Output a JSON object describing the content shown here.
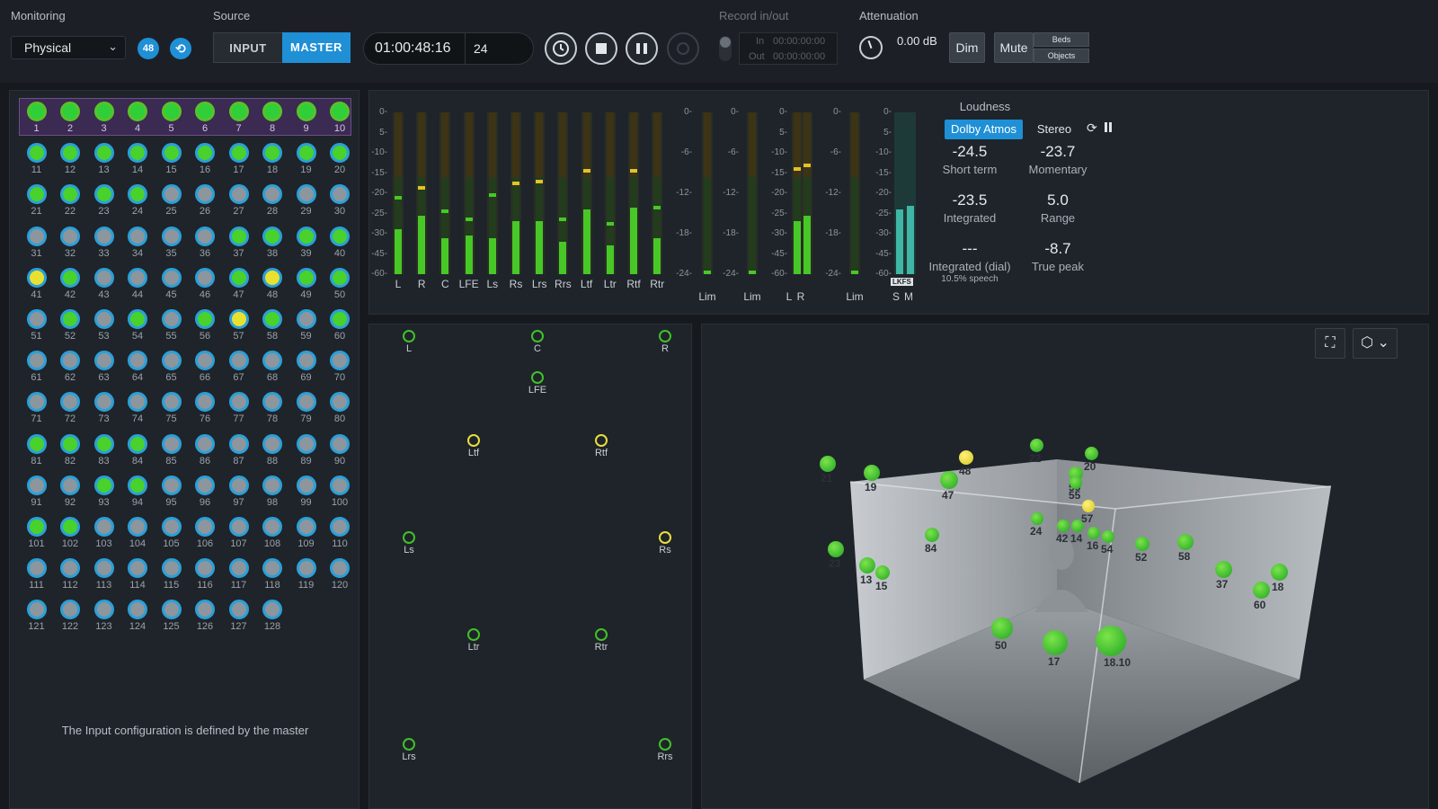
{
  "header": {
    "monitoring_label": "Monitoring",
    "monitoring_value": "Physical",
    "monitoring_badge": "48",
    "source_label": "Source",
    "input_label": "INPUT",
    "master_label": "MASTER",
    "timecode": "01:00:48:16",
    "frame_rate": "24",
    "record_label": "Record in/out",
    "record_in_label": "In",
    "record_in_value": "00:00:00:00",
    "record_out_label": "Out",
    "record_out_value": "00:00:00:00",
    "attenuation_label": "Attenuation",
    "attenuation_value": "0.00 dB",
    "dim_label": "Dim",
    "mute_label": "Mute",
    "beds_label": "Beds",
    "objects_label": "Objects"
  },
  "channels": {
    "top_row": [
      "1",
      "2",
      "3",
      "4",
      "5",
      "6",
      "7",
      "8",
      "9",
      "10"
    ],
    "numbers_start": 11,
    "numbers_end": 128,
    "active_green": [
      11,
      12,
      13,
      14,
      15,
      16,
      17,
      18,
      19,
      20,
      21,
      22,
      23,
      24,
      37,
      38,
      39,
      40,
      42,
      47,
      49,
      50,
      52,
      54,
      56,
      58,
      60,
      81,
      82,
      83,
      84,
      93,
      94,
      101,
      102
    ],
    "active_yellow": [
      41,
      48,
      57
    ],
    "footer_note": "The Input configuration is defined by the master",
    "colors": {
      "ring": "#2ba0d8",
      "active": "#49d12c",
      "inactive": "#8d959d",
      "selected": "#e9e12f",
      "top_bg": "#3b2a52"
    }
  },
  "meters": {
    "scale_main": [
      "0-",
      "5-",
      "-10-",
      "-15-",
      "-20-",
      "-25-",
      "-30-",
      "-45-",
      "-60-"
    ],
    "scale_lim": [
      "0-",
      "-6-",
      "-12-",
      "-18-",
      "-24-"
    ],
    "bed_channels": [
      {
        "label": "L",
        "level": 0.28,
        "peak": 0.46,
        "peak_color": "green"
      },
      {
        "label": "R",
        "level": 0.36,
        "peak": 0.52,
        "peak_color": "yellow"
      },
      {
        "label": "C",
        "level": 0.22,
        "peak": 0.38,
        "peak_color": "green"
      },
      {
        "label": "LFE",
        "level": 0.24,
        "peak": 0.33,
        "peak_color": "green"
      },
      {
        "label": "Ls",
        "level": 0.22,
        "peak": 0.48,
        "peak_color": "green"
      },
      {
        "label": "Rs",
        "level": 0.33,
        "peak": 0.55,
        "peak_color": "yellow"
      },
      {
        "label": "Lrs",
        "level": 0.33,
        "peak": 0.56,
        "peak_color": "yellow"
      },
      {
        "label": "Rrs",
        "level": 0.2,
        "peak": 0.33,
        "peak_color": "green"
      },
      {
        "label": "Ltf",
        "level": 0.4,
        "peak": 0.63,
        "peak_color": "yellow"
      },
      {
        "label": "Ltr",
        "level": 0.18,
        "peak": 0.3,
        "peak_color": "green"
      },
      {
        "label": "Rtf",
        "level": 0.41,
        "peak": 0.63,
        "peak_color": "yellow"
      },
      {
        "label": "Rtr",
        "level": 0.22,
        "peak": 0.4,
        "peak_color": "green"
      }
    ],
    "lim_label": "Lim",
    "headphone_lr": [
      "L",
      "R"
    ],
    "lkfs_label": "LKFS",
    "sm_labels": [
      "S",
      "M"
    ]
  },
  "loudness": {
    "title": "Loudness",
    "tab_active": "Dolby Atmos",
    "tab_other": "Stereo",
    "values": [
      {
        "value": "-24.5",
        "label": "Short term"
      },
      {
        "value": "-23.7",
        "label": "Momentary"
      },
      {
        "value": "-23.5",
        "label": "Integrated"
      },
      {
        "value": "5.0",
        "label": "Range"
      },
      {
        "value": "---",
        "label": "Integrated (dial)"
      },
      {
        "value": "-8.7",
        "label": "True peak"
      }
    ],
    "speech_note": "10.5% speech"
  },
  "speakers": [
    {
      "label": "L",
      "color": "green"
    },
    {
      "label": "C",
      "color": "green"
    },
    {
      "label": "R",
      "color": "green"
    },
    {
      "label": "LFE",
      "color": "green"
    },
    {
      "label": "Ltf",
      "color": "yellow"
    },
    {
      "label": "Rtf",
      "color": "yellow"
    },
    {
      "label": "Ls",
      "color": "green"
    },
    {
      "label": "Rs",
      "color": "yellow"
    },
    {
      "label": "Ltr",
      "color": "green"
    },
    {
      "label": "Rtr",
      "color": "green"
    },
    {
      "label": "Lrs",
      "color": "green"
    },
    {
      "label": "Rrs",
      "color": "green"
    }
  ],
  "objects": [
    {
      "label": "21",
      "color": "green"
    },
    {
      "label": "19",
      "color": "green"
    },
    {
      "label": "47",
      "color": "green"
    },
    {
      "label": "48",
      "color": "yellow"
    },
    {
      "label": "22",
      "color": "green"
    },
    {
      "label": "20",
      "color": "green"
    },
    {
      "label": "56",
      "color": "green"
    },
    {
      "label": "55",
      "color": "green"
    },
    {
      "label": "57",
      "color": "yellow"
    },
    {
      "label": "24",
      "color": "green"
    },
    {
      "label": "42",
      "color": "green"
    },
    {
      "label": "14",
      "color": "green"
    },
    {
      "label": "16",
      "color": "green"
    },
    {
      "label": "54",
      "color": "green"
    },
    {
      "label": "84",
      "color": "green"
    },
    {
      "label": "52",
      "color": "green"
    },
    {
      "label": "58",
      "color": "green"
    },
    {
      "label": "23",
      "color": "green"
    },
    {
      "label": "13",
      "color": "green"
    },
    {
      "label": "15",
      "color": "green"
    },
    {
      "label": "37",
      "color": "green"
    },
    {
      "label": "18",
      "color": "green"
    },
    {
      "label": "60",
      "color": "green"
    },
    {
      "label": "50",
      "color": "green"
    },
    {
      "label": "17",
      "color": "green"
    },
    {
      "label": "18.10",
      "color": "green"
    }
  ]
}
